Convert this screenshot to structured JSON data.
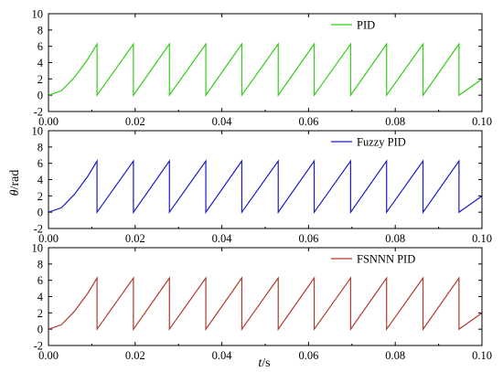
{
  "figure": {
    "ylabel_symbol": "θ",
    "ylabel_unit": "/rad",
    "xlabel_symbol": "t",
    "xlabel_unit": "/s"
  },
  "chart_data": [
    {
      "type": "line",
      "title": "",
      "xlabel": "",
      "ylabel": "",
      "xlim": [
        0,
        0.1
      ],
      "ylim": [
        -2,
        10
      ],
      "xticks": [
        "0.00",
        "0.02",
        "0.04",
        "0.06",
        "0.08",
        "0.10"
      ],
      "yticks": [
        "-2",
        "0",
        "2",
        "4",
        "6",
        "8",
        "10"
      ],
      "legend_position": "top-right",
      "series": [
        {
          "name": "PID",
          "color": "#33cc1a",
          "x": [
            0,
            0.003,
            0.006,
            0.009,
            0.0112,
            0.0112,
            0.0196,
            0.0196,
            0.0279,
            0.0279,
            0.0363,
            0.0363,
            0.0446,
            0.0446,
            0.053,
            0.053,
            0.0613,
            0.0613,
            0.0697,
            0.0697,
            0.078,
            0.078,
            0.0864,
            0.0864,
            0.0947,
            0.0947,
            0.1
          ],
          "y": [
            0,
            0.55,
            2.2,
            4.35,
            6.28,
            0,
            6.28,
            0,
            6.28,
            0,
            6.28,
            0,
            6.28,
            0,
            6.28,
            0,
            6.28,
            0,
            6.28,
            0,
            6.28,
            0,
            6.28,
            0,
            6.28,
            0,
            1.98
          ]
        }
      ]
    },
    {
      "type": "line",
      "title": "",
      "xlabel": "",
      "ylabel": "θ/rad",
      "xlim": [
        0,
        0.1
      ],
      "ylim": [
        -2,
        10
      ],
      "xticks": [
        "0.00",
        "0.02",
        "0.04",
        "0.06",
        "0.08",
        "0.10"
      ],
      "yticks": [
        "-2",
        "0",
        "2",
        "4",
        "6",
        "8",
        "10"
      ],
      "legend_position": "top-right",
      "series": [
        {
          "name": "Fuzzy PID",
          "color": "#1a1acc",
          "x": [
            0,
            0.003,
            0.006,
            0.009,
            0.0112,
            0.0112,
            0.0196,
            0.0196,
            0.0279,
            0.0279,
            0.0363,
            0.0363,
            0.0446,
            0.0446,
            0.053,
            0.053,
            0.0613,
            0.0613,
            0.0697,
            0.0697,
            0.078,
            0.078,
            0.0864,
            0.0864,
            0.0947,
            0.0947,
            0.1
          ],
          "y": [
            0,
            0.55,
            2.2,
            4.35,
            6.28,
            0,
            6.28,
            0,
            6.28,
            0,
            6.28,
            0,
            6.28,
            0,
            6.28,
            0,
            6.28,
            0,
            6.28,
            0,
            6.28,
            0,
            6.28,
            0,
            6.28,
            0,
            1.98
          ]
        }
      ]
    },
    {
      "type": "line",
      "title": "",
      "xlabel": "t/s",
      "ylabel": "",
      "xlim": [
        0,
        0.1
      ],
      "ylim": [
        -2,
        10
      ],
      "xticks": [
        "0.00",
        "0.02",
        "0.04",
        "0.06",
        "0.08",
        "0.10"
      ],
      "yticks": [
        "-2",
        "0",
        "2",
        "4",
        "6",
        "8",
        "10"
      ],
      "legend_position": "top-right",
      "series": [
        {
          "name": "FSNNN PID",
          "color": "#b23a2a",
          "x": [
            0,
            0.003,
            0.006,
            0.009,
            0.0112,
            0.0112,
            0.0196,
            0.0196,
            0.0279,
            0.0279,
            0.0363,
            0.0363,
            0.0446,
            0.0446,
            0.053,
            0.053,
            0.0613,
            0.0613,
            0.0697,
            0.0697,
            0.078,
            0.078,
            0.0864,
            0.0864,
            0.0947,
            0.0947,
            0.1
          ],
          "y": [
            0,
            0.55,
            2.2,
            4.35,
            6.28,
            0,
            6.28,
            0,
            6.28,
            0,
            6.28,
            0,
            6.28,
            0,
            6.28,
            0,
            6.28,
            0,
            6.28,
            0,
            6.28,
            0,
            6.28,
            0,
            6.28,
            0,
            1.98
          ]
        }
      ]
    }
  ]
}
